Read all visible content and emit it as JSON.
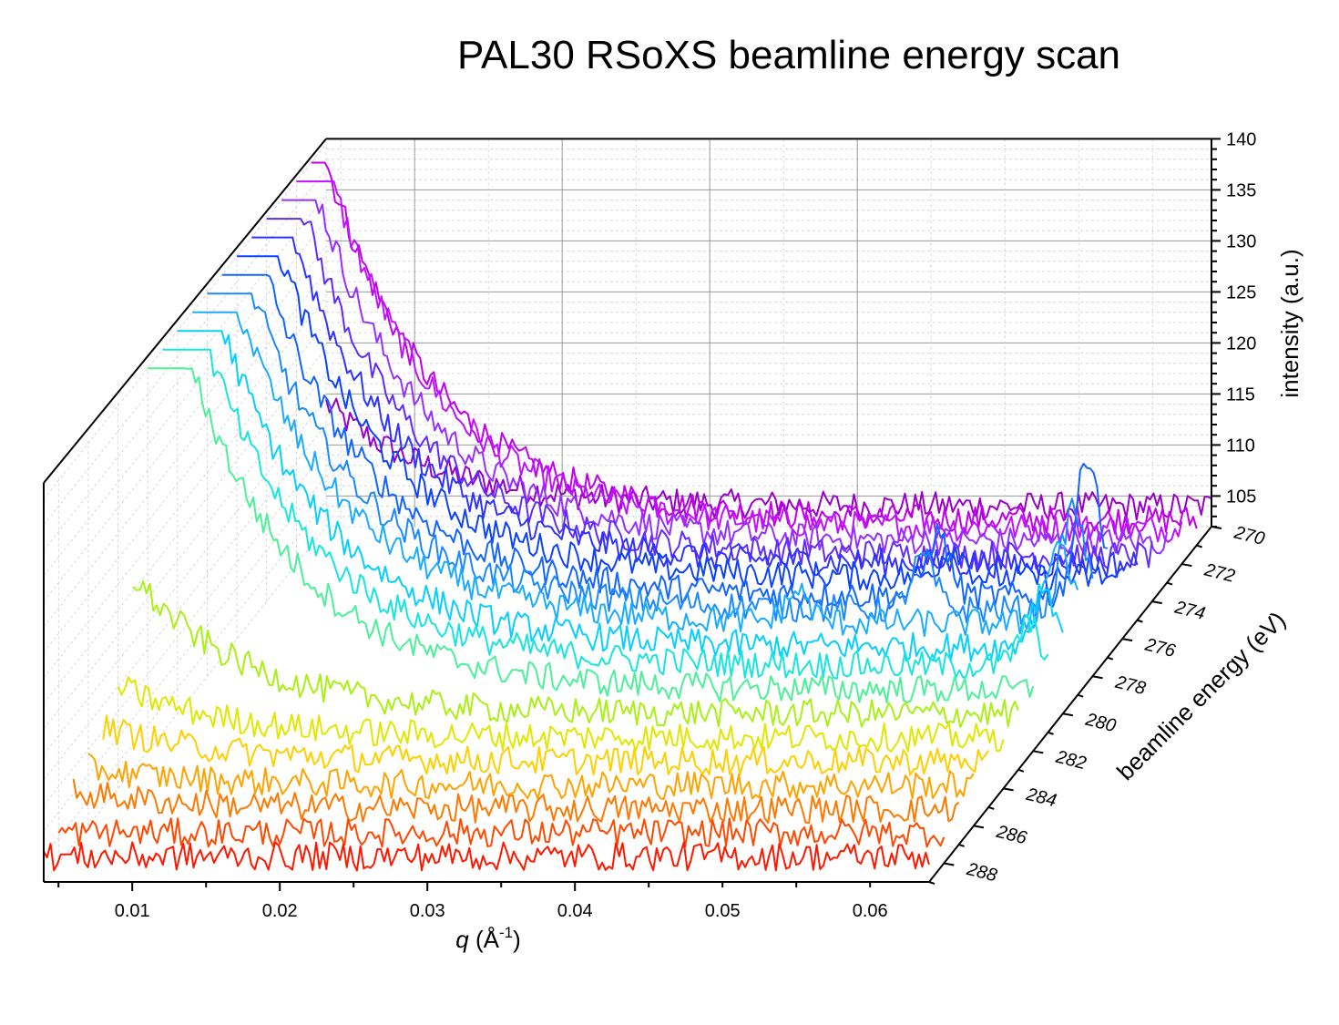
{
  "chart_data": {
    "type": "line",
    "subtype": "3d-waterfall",
    "title": "PAL30 RSoXS beamline energy scan",
    "xlabel_var": "q",
    "xlabel_unit": " (Å",
    "xlabel_exp": "-1",
    "xlabel_close": ")",
    "ylabel": "beamline energy (eV)",
    "zlabel": "intensity (a.u.)",
    "xlim": [
      0.004,
      0.064
    ],
    "ylim": [
      270,
      289
    ],
    "zlim": [
      102,
      140
    ],
    "x_ticks": [
      "0.01",
      "0.02",
      "0.03",
      "0.04",
      "0.05",
      "0.06"
    ],
    "x_tick_values": [
      0.01,
      0.02,
      0.03,
      0.04,
      0.05,
      0.06
    ],
    "y_ticks": [
      "270",
      "272",
      "274",
      "276",
      "278",
      "280",
      "282",
      "284",
      "286",
      "288"
    ],
    "y_tick_values": [
      270,
      272,
      274,
      276,
      278,
      280,
      282,
      284,
      286,
      288
    ],
    "z_ticks": [
      "105",
      "110",
      "115",
      "120",
      "125",
      "130",
      "135",
      "140"
    ],
    "z_tick_values": [
      105,
      110,
      115,
      120,
      125,
      130,
      135,
      140
    ],
    "grid": true,
    "colormap": [
      "#9a00c8",
      "#d400ff",
      "#9b30ff",
      "#4a2bff",
      "#0a3cff",
      "#1670ff",
      "#1fa4ff",
      "#00d8ff",
      "#2ef0c0",
      "#b8f000",
      "#ffe000",
      "#ffa000",
      "#ff6000",
      "#ff1800"
    ],
    "series_energies": [
      270,
      271,
      272,
      273,
      274,
      275,
      276,
      277,
      278,
      279,
      280,
      281,
      282,
      283,
      284,
      285,
      286,
      287,
      288,
      289
    ],
    "series_profiles": [
      {
        "energy": 270,
        "baseline": 104.0,
        "low_q_rise": 3.0,
        "peaks": []
      },
      {
        "energy": 271,
        "baseline": 104.5,
        "low_q_rise": 12.0,
        "peaks": []
      },
      {
        "energy": 272,
        "baseline": 105.5,
        "low_q_rise": 14.0,
        "peaks": []
      },
      {
        "energy": 273,
        "baseline": 106.0,
        "low_q_rise": 14.0,
        "peaks": []
      },
      {
        "energy": 274,
        "baseline": 106.5,
        "low_q_rise": 14.0,
        "peaks": []
      },
      {
        "energy": 275,
        "baseline": 107.5,
        "low_q_rise": 14.0,
        "peaks": []
      },
      {
        "energy": 276,
        "baseline": 108.0,
        "low_q_rise": 14.0,
        "peaks": [
          {
            "q": 0.0525,
            "height": 3
          }
        ]
      },
      {
        "energy": 277,
        "baseline": 108.0,
        "low_q_rise": 14.0,
        "peaks": [
          {
            "q": 0.0525,
            "height": 6
          },
          {
            "q": 0.0627,
            "height": 14
          }
        ]
      },
      {
        "energy": 278,
        "baseline": 108.5,
        "low_q_rise": 14.0,
        "peaks": [
          {
            "q": 0.0525,
            "height": 5
          },
          {
            "q": 0.0627,
            "height": 10
          }
        ]
      },
      {
        "energy": 279,
        "baseline": 109.0,
        "low_q_rise": 14.0,
        "peaks": [
          {
            "q": 0.045,
            "height": 3
          },
          {
            "q": 0.0627,
            "height": 8
          }
        ]
      },
      {
        "energy": 280,
        "baseline": 108.5,
        "low_q_rise": 14.0,
        "peaks": [
          {
            "q": 0.0627,
            "height": 6
          }
        ]
      },
      {
        "energy": 281,
        "baseline": 108.5,
        "low_q_rise": 14.0,
        "peaks": [
          {
            "q": 0.0627,
            "height": 4
          }
        ]
      },
      {
        "energy": 282,
        "baseline": 108.0,
        "low_q_rise": 14.0,
        "peaks": []
      },
      {
        "energy": 283,
        "baseline": 107.5,
        "low_q_rise": 4.0,
        "peaks": []
      },
      {
        "energy": 284,
        "baseline": 107.0,
        "low_q_rise": 1.5,
        "peaks": []
      },
      {
        "energy": 285,
        "baseline": 106.5,
        "low_q_rise": 1.0,
        "peaks": []
      },
      {
        "energy": 286,
        "baseline": 106.0,
        "low_q_rise": 0.5,
        "peaks": []
      },
      {
        "energy": 287,
        "baseline": 105.5,
        "low_q_rise": 0.5,
        "peaks": []
      },
      {
        "energy": 288,
        "baseline": 105.0,
        "low_q_rise": 0.0,
        "peaks": []
      },
      {
        "energy": 289,
        "baseline": 104.5,
        "low_q_rise": 0.0,
        "peaks": []
      }
    ],
    "noise_amplitude": 1.4
  }
}
